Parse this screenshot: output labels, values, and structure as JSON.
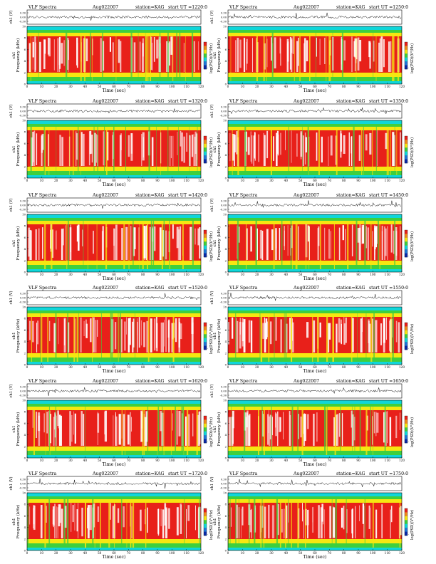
{
  "chart_data": [
    {
      "type": "heatmap",
      "title": "VLF Spectra",
      "date": "Aug022007",
      "station": "station=KAG",
      "start_ut": "start UT =1220:0",
      "top_ylabel": "ch1 (V)",
      "top_yticks": [
        "0.30",
        "0.00",
        "-0.30"
      ],
      "ylabel_ch": "ch1",
      "ylabel": "Frequency (kHz)",
      "yticks": [
        0,
        2,
        4,
        6,
        8,
        10
      ],
      "xlabel": "Time (sec)",
      "xticks": [
        0,
        10,
        20,
        30,
        40,
        50,
        60,
        70,
        80,
        90,
        100,
        110,
        120
      ],
      "xlim": [
        0,
        120
      ],
      "ylim": [
        0,
        10
      ],
      "colorbar_label": "log(PSD)(V²/Hz)",
      "colorbar_ticks": [
        "",
        "-"
      ]
    },
    {
      "type": "heatmap",
      "title": "VLF Spectra",
      "date": "Aug022007",
      "station": "station=KAG",
      "start_ut": "start UT =1250:0",
      "top_ylabel": "ch1 (V)",
      "top_yticks": [
        "0.30",
        "0.00",
        "-0.30"
      ],
      "ylabel_ch": "ch1",
      "ylabel": "Frequency (kHz)",
      "yticks": [
        0,
        2,
        4,
        6,
        8,
        10
      ],
      "xlabel": "Time (sec)",
      "xticks": [
        0,
        10,
        20,
        30,
        40,
        50,
        60,
        70,
        80,
        90,
        100,
        110,
        120
      ],
      "xlim": [
        0,
        120
      ],
      "ylim": [
        0,
        10
      ],
      "colorbar_label": "log(PSD)(V²/Hz)",
      "colorbar_ticks": [
        "",
        "-"
      ]
    },
    {
      "type": "heatmap",
      "title": "VLF Spectra",
      "date": "Aug022007",
      "station": "station=KAG",
      "start_ut": "start UT =1320:0",
      "top_ylabel": "ch1 (V)",
      "top_yticks": [
        "0.30",
        "0.00",
        "-0.30"
      ],
      "ylabel_ch": "ch1",
      "ylabel": "Frequency (kHz)",
      "yticks": [
        0,
        2,
        4,
        6,
        8,
        10
      ],
      "xlabel": "Time (sec)",
      "xticks": [
        0,
        10,
        20,
        30,
        40,
        50,
        60,
        70,
        80,
        90,
        100,
        110,
        120
      ],
      "xlim": [
        0,
        120
      ],
      "ylim": [
        0,
        10
      ],
      "colorbar_label": "log(PSD)(V²/Hz)",
      "colorbar_ticks": [
        "",
        "-"
      ]
    },
    {
      "type": "heatmap",
      "title": "VLF Spectra",
      "date": "Aug022007",
      "station": "station=KAG",
      "start_ut": "start UT =1350:0",
      "top_ylabel": "ch1 (V)",
      "top_yticks": [
        "0.30",
        "0.00",
        "-0.30"
      ],
      "ylabel_ch": "ch1",
      "ylabel": "Frequency (kHz)",
      "yticks": [
        0,
        2,
        4,
        6,
        8,
        10
      ],
      "xlabel": "Time (sec)",
      "xticks": [
        0,
        10,
        20,
        30,
        40,
        50,
        60,
        70,
        80,
        90,
        100,
        110,
        120
      ],
      "xlim": [
        0,
        120
      ],
      "ylim": [
        0,
        10
      ],
      "colorbar_label": "log(PSD)(V²/Hz)",
      "colorbar_ticks": [
        "",
        "-"
      ]
    },
    {
      "type": "heatmap",
      "title": "VLF Spectra",
      "date": "Aug022007",
      "station": "station=KAG",
      "start_ut": "start UT =1420:0",
      "top_ylabel": "ch1 (V)",
      "top_yticks": [
        "0.30",
        "0.00",
        "-0.30"
      ],
      "ylabel_ch": "ch1",
      "ylabel": "Frequency (kHz)",
      "yticks": [
        0,
        2,
        4,
        6,
        8,
        10
      ],
      "xlabel": "Time (sec)",
      "xticks": [
        0,
        10,
        20,
        30,
        40,
        50,
        60,
        70,
        80,
        90,
        100,
        110,
        120
      ],
      "xlim": [
        0,
        120
      ],
      "ylim": [
        0,
        10
      ],
      "colorbar_label": "log(PSD)(V²/Hz)",
      "colorbar_ticks": [
        "",
        "-"
      ]
    },
    {
      "type": "heatmap",
      "title": "VLF Spectra",
      "date": "Aug022007",
      "station": "station=KAG",
      "start_ut": "start UT =1450:0",
      "top_ylabel": "ch1 (V)",
      "top_yticks": [
        "0.30",
        "0.00",
        "-0.30"
      ],
      "ylabel_ch": "ch1",
      "ylabel": "Frequency (kHz)",
      "yticks": [
        0,
        2,
        4,
        6,
        8,
        10
      ],
      "xlabel": "Time (sec)",
      "xticks": [
        0,
        10,
        20,
        30,
        40,
        50,
        60,
        70,
        80,
        90,
        100,
        110,
        120
      ],
      "xlim": [
        0,
        120
      ],
      "ylim": [
        0,
        10
      ],
      "colorbar_label": "log(PSD)(V²/Hz)",
      "colorbar_ticks": [
        "",
        "-"
      ]
    },
    {
      "type": "heatmap",
      "title": "VLF Spectra",
      "date": "Aug022007",
      "station": "station=KAG",
      "start_ut": "start UT =1520:0",
      "top_ylabel": "ch1 (V)",
      "top_yticks": [
        "0.30",
        "0.00",
        "-0.30"
      ],
      "ylabel_ch": "ch1",
      "ylabel": "Frequency (kHz)",
      "yticks": [
        0,
        2,
        4,
        6,
        8,
        10
      ],
      "xlabel": "Time (sec)",
      "xticks": [
        0,
        10,
        20,
        30,
        40,
        50,
        60,
        70,
        80,
        90,
        100,
        110,
        120
      ],
      "xlim": [
        0,
        120
      ],
      "ylim": [
        0,
        10
      ],
      "colorbar_label": "log(PSD)(V²/Hz)",
      "colorbar_ticks": [
        "",
        "-"
      ]
    },
    {
      "type": "heatmap",
      "title": "VLF Spectra",
      "date": "Aug022007",
      "station": "station=KAG",
      "start_ut": "start UT =1550:0",
      "top_ylabel": "ch1 (V)",
      "top_yticks": [
        "0.30",
        "0.00",
        "-0.30"
      ],
      "ylabel_ch": "ch1",
      "ylabel": "Frequency (kHz)",
      "yticks": [
        0,
        2,
        4,
        6,
        8,
        10
      ],
      "xlabel": "Time (sec)",
      "xticks": [
        0,
        10,
        20,
        30,
        40,
        50,
        60,
        70,
        80,
        90,
        100,
        110,
        120
      ],
      "xlim": [
        0,
        120
      ],
      "ylim": [
        0,
        10
      ],
      "colorbar_label": "log(PSD)(V²/Hz)",
      "colorbar_ticks": [
        "",
        "-"
      ]
    },
    {
      "type": "heatmap",
      "title": "VLF Spectra",
      "date": "Aug022007",
      "station": "station=KAG",
      "start_ut": "start UT =1620:0",
      "top_ylabel": "ch1 (V)",
      "top_yticks": [
        "0.30",
        "0.00",
        "-0.30"
      ],
      "ylabel_ch": "ch1",
      "ylabel": "Frequency (kHz)",
      "yticks": [
        0,
        2,
        4,
        6,
        8,
        10
      ],
      "xlabel": "Time (sec)",
      "xticks": [
        0,
        10,
        20,
        30,
        40,
        50,
        60,
        70,
        80,
        90,
        100,
        110,
        120
      ],
      "xlim": [
        0,
        120
      ],
      "ylim": [
        0,
        10
      ],
      "colorbar_label": "log(PSD)(V²/Hz)",
      "colorbar_ticks": [
        "",
        "-"
      ]
    },
    {
      "type": "heatmap",
      "title": "VLF Spectra",
      "date": "Aug022007",
      "station": "station=KAG",
      "start_ut": "start UT =1650:0",
      "top_ylabel": "ch1 (V)",
      "top_yticks": [
        "0.30",
        "0.00",
        "-0.30"
      ],
      "ylabel_ch": "ch1",
      "ylabel": "Frequency (kHz)",
      "yticks": [
        0,
        2,
        4,
        6,
        8,
        10
      ],
      "xlabel": "Time (sec)",
      "xticks": [
        0,
        10,
        20,
        30,
        40,
        50,
        60,
        70,
        80,
        90,
        100,
        110,
        120
      ],
      "xlim": [
        0,
        120
      ],
      "ylim": [
        0,
        10
      ],
      "colorbar_label": "log(PSD)(V²/Hz)",
      "colorbar_ticks": [
        "",
        "-"
      ]
    },
    {
      "type": "heatmap",
      "title": "VLF Spectra",
      "date": "Aug022007",
      "station": "station=KAG",
      "start_ut": "start UT =1720:0",
      "top_ylabel": "ch1 (V)",
      "top_yticks": [
        "0.30",
        "0.00",
        "-0.30"
      ],
      "ylabel_ch": "ch1",
      "ylabel": "Frequency (kHz)",
      "yticks": [
        0,
        2,
        4,
        6,
        8,
        10
      ],
      "xlabel": "Time (sec)",
      "xticks": [
        0,
        10,
        20,
        30,
        40,
        50,
        60,
        70,
        80,
        90,
        100,
        110,
        120
      ],
      "xlim": [
        0,
        120
      ],
      "ylim": [
        0,
        10
      ],
      "colorbar_label": "log(PSD)(V²/Hz)",
      "colorbar_ticks": [
        "",
        "-"
      ]
    },
    {
      "type": "heatmap",
      "title": "VLF Spectra",
      "date": "Aug022007",
      "station": "station=KAG",
      "start_ut": "start UT =1750:0",
      "top_ylabel": "ch1 (V)",
      "top_yticks": [
        "0.30",
        "0.00",
        "-0.30"
      ],
      "ylabel_ch": "ch1",
      "ylabel": "Frequency (kHz)",
      "yticks": [
        0,
        2,
        4,
        6,
        8,
        10
      ],
      "xlabel": "Time (sec)",
      "xticks": [
        0,
        10,
        20,
        30,
        40,
        50,
        60,
        70,
        80,
        90,
        100,
        110,
        120
      ],
      "xlim": [
        0,
        120
      ],
      "ylim": [
        0,
        10
      ],
      "colorbar_label": "log(PSD)(V²/Hz)",
      "colorbar_ticks": [
        "",
        "-"
      ]
    }
  ],
  "colors": {
    "high": "#e8201a",
    "mid": "#f6e711",
    "low": "#3fcf3d",
    "floor": "#10d6d9",
    "cb_top": "#e8201a",
    "cb_bottom": "#0a2aa8"
  }
}
